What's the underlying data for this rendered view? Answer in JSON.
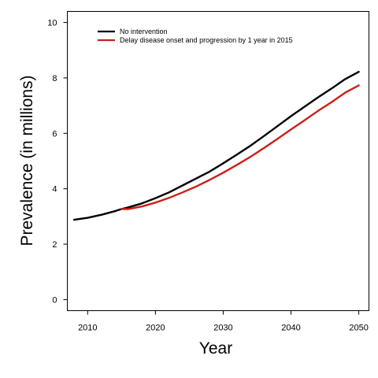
{
  "chart_data": {
    "type": "line",
    "xlabel": "Year",
    "ylabel": "Prevalence (in millions)",
    "xlim": [
      2007,
      2051.5
    ],
    "ylim": [
      -0.4,
      10.4
    ],
    "x_ticks": [
      2010,
      2020,
      2030,
      2040,
      2050
    ],
    "y_ticks": [
      0,
      2,
      4,
      6,
      8,
      10
    ],
    "legend_position": "top-left",
    "grid": false,
    "series": [
      {
        "name": "No intervention",
        "color": "#000000",
        "x": [
          2008,
          2010,
          2012,
          2014,
          2015,
          2016,
          2018,
          2020,
          2022,
          2024,
          2026,
          2028,
          2030,
          2032,
          2034,
          2036,
          2038,
          2040,
          2042,
          2044,
          2046,
          2048,
          2050
        ],
        "y": [
          2.88,
          2.95,
          3.06,
          3.19,
          3.27,
          3.33,
          3.47,
          3.66,
          3.87,
          4.12,
          4.37,
          4.62,
          4.92,
          5.23,
          5.55,
          5.9,
          6.26,
          6.62,
          6.96,
          7.3,
          7.62,
          7.96,
          8.22
        ]
      },
      {
        "name": "Delay disease onset and progression by 1 year in 2015",
        "color": "#cc1f1a",
        "x": [
          2015,
          2016,
          2018,
          2020,
          2022,
          2024,
          2026,
          2028,
          2030,
          2032,
          2034,
          2036,
          2038,
          2040,
          2042,
          2044,
          2046,
          2048,
          2050
        ],
        "y": [
          3.27,
          3.27,
          3.36,
          3.5,
          3.67,
          3.87,
          4.08,
          4.32,
          4.58,
          4.86,
          5.15,
          5.47,
          5.8,
          6.14,
          6.47,
          6.81,
          7.13,
          7.47,
          7.73
        ]
      }
    ]
  }
}
